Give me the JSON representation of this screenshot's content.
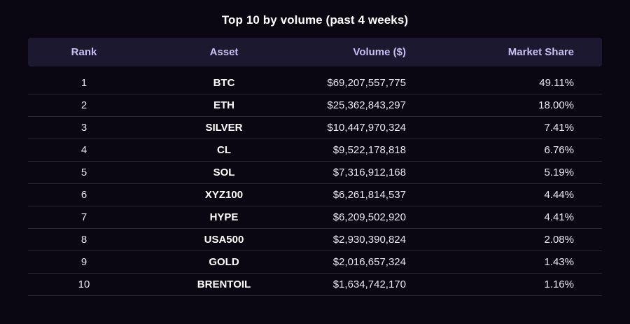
{
  "title": "Top 10 by volume (past 4 weeks)",
  "columns": {
    "rank": "Rank",
    "asset": "Asset",
    "volume": "Volume ($)",
    "share": "Market Share"
  },
  "rows": [
    {
      "rank": "1",
      "asset": "BTC",
      "volume": "$69,207,557,775",
      "share": "49.11%"
    },
    {
      "rank": "2",
      "asset": "ETH",
      "volume": "$25,362,843,297",
      "share": "18.00%"
    },
    {
      "rank": "3",
      "asset": "SILVER",
      "volume": "$10,447,970,324",
      "share": "7.41%"
    },
    {
      "rank": "4",
      "asset": "CL",
      "volume": "$9,522,178,818",
      "share": "6.76%"
    },
    {
      "rank": "5",
      "asset": "SOL",
      "volume": "$7,316,912,168",
      "share": "5.19%"
    },
    {
      "rank": "6",
      "asset": "XYZ100",
      "volume": "$6,261,814,537",
      "share": "4.44%"
    },
    {
      "rank": "7",
      "asset": "HYPE",
      "volume": "$6,209,502,920",
      "share": "4.41%"
    },
    {
      "rank": "8",
      "asset": "USA500",
      "volume": "$2,930,390,824",
      "share": "2.08%"
    },
    {
      "rank": "9",
      "asset": "GOLD",
      "volume": "$2,016,657,324",
      "share": "1.43%"
    },
    {
      "rank": "10",
      "asset": "BRENTOIL",
      "volume": "$1,634,742,170",
      "share": "1.16%"
    }
  ],
  "colors": {
    "background": "#0a0713",
    "header_bg": "#1c1830",
    "header_text": "#c7bff0",
    "row_divider": "#2a2638"
  }
}
